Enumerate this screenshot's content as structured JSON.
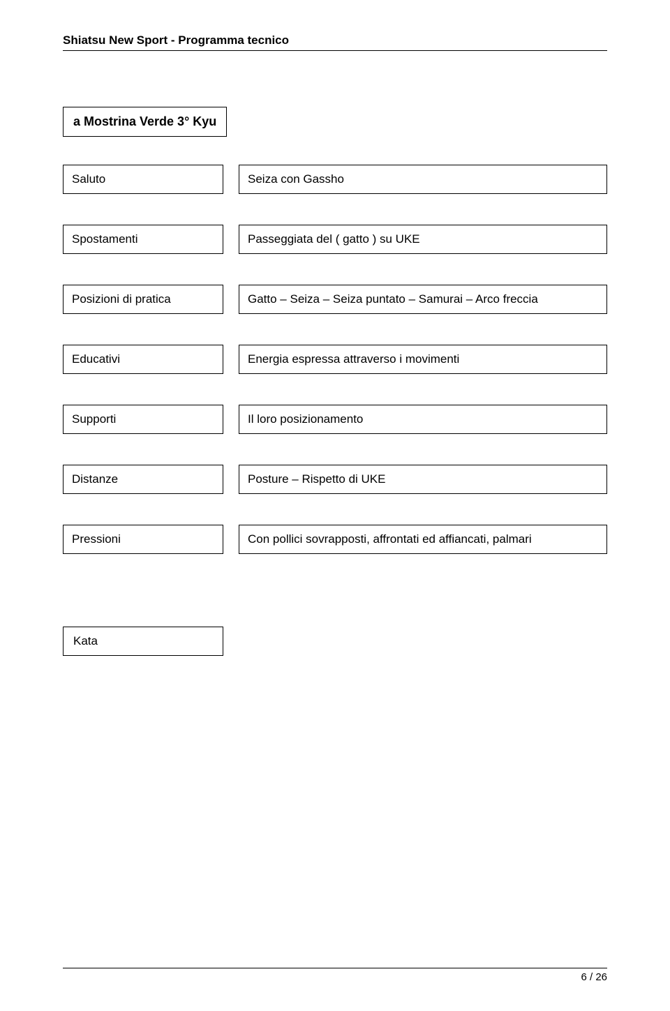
{
  "header": {
    "title": "Shiatsu New Sport - Programma tecnico"
  },
  "section": {
    "title": "a Mostrina Verde 3° Kyu"
  },
  "rows": [
    {
      "label": "Saluto",
      "value": "Seiza con Gassho"
    },
    {
      "label": "Spostamenti",
      "value": "Passeggiata del ( gatto ) su UKE"
    },
    {
      "label": "Posizioni di pratica",
      "value": "Gatto – Seiza – Seiza puntato – Samurai – Arco freccia"
    },
    {
      "label": "Educativi",
      "value": "Energia espressa attraverso i movimenti"
    },
    {
      "label": "Supporti",
      "value": "Il loro posizionamento"
    },
    {
      "label": "Distanze",
      "value": "Posture – Rispetto di UKE"
    },
    {
      "label": "Pressioni",
      "value": "Con pollici sovrapposti, affrontati ed affiancati, palmari"
    }
  ],
  "kata": {
    "label": "Kata"
  },
  "footer": {
    "page": "6 / 26"
  }
}
